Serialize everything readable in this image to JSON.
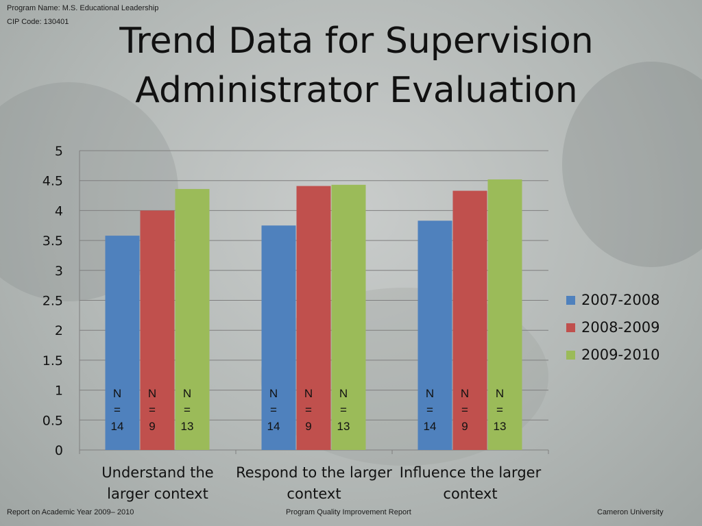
{
  "header": {
    "program_name": "Program Name: M.S. Educational Leadership",
    "cip_code": "CIP Code: 130401"
  },
  "title": {
    "line1": "Trend Data for Supervision",
    "line2": "Administrator Evaluation"
  },
  "footer": {
    "left": "Report on Academic Year 2009– 2010",
    "center": "Program Quality Improvement Report",
    "right": "Cameron University"
  },
  "colors": {
    "series1": "#4f81bd",
    "series2": "#c0504d",
    "series3": "#9bbb59"
  },
  "chart_data": {
    "type": "bar",
    "title": "Trend Data for Supervision Administrator Evaluation",
    "categories": [
      [
        "Understand the",
        "larger context"
      ],
      [
        "Respond to the larger",
        "context"
      ],
      [
        "Influence the larger",
        "context"
      ]
    ],
    "series": [
      {
        "name": "2007-2008",
        "values": [
          3.58,
          3.75,
          3.83
        ],
        "n_labels": [
          "N = 14",
          "N = 14",
          "N = 14"
        ]
      },
      {
        "name": "2008-2009",
        "values": [
          4.0,
          4.41,
          4.33
        ],
        "n_labels": [
          "N = 9",
          "N = 9",
          "N = 9"
        ]
      },
      {
        "name": "2009-2010",
        "values": [
          4.36,
          4.43,
          4.52
        ],
        "n_labels": [
          "N = 13",
          "N = 13",
          "N = 13"
        ]
      }
    ],
    "ylim": [
      0,
      5
    ],
    "yticks": [
      "0",
      "0.5",
      "1",
      "1.5",
      "2",
      "2.5",
      "3",
      "3.5",
      "4",
      "4.5",
      "5"
    ],
    "grid": true,
    "legend": "right",
    "xlabel": "",
    "ylabel": ""
  }
}
